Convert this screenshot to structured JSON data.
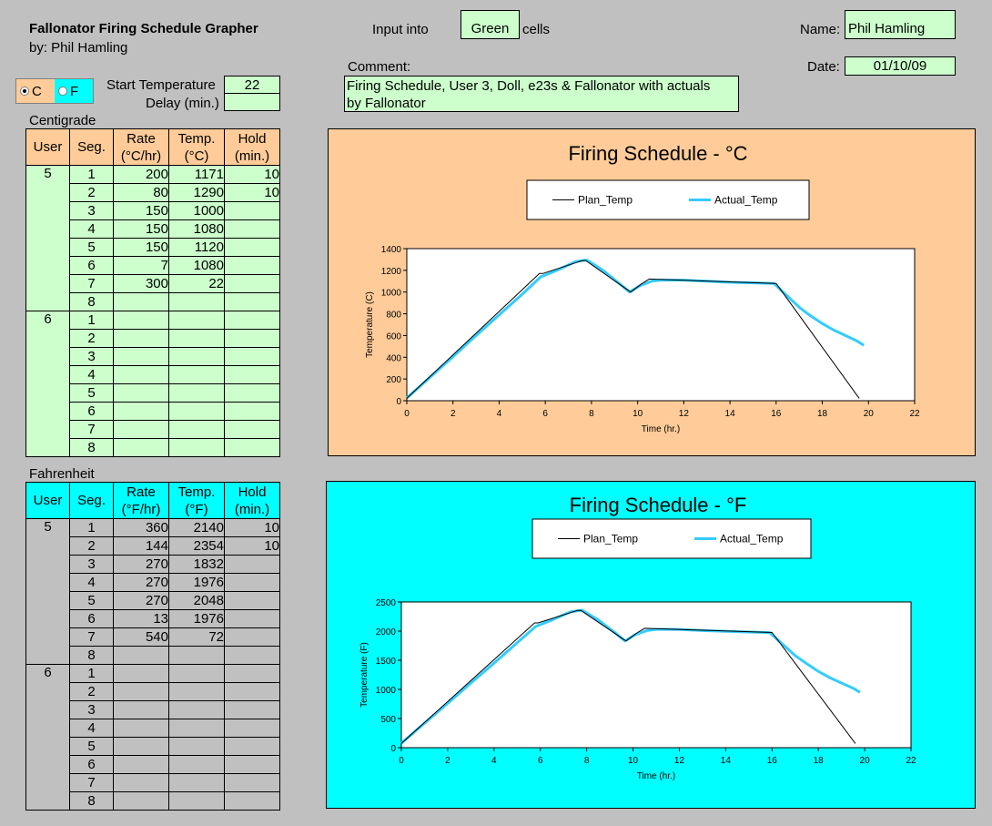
{
  "header": {
    "title": "Fallonator Firing Schedule Grapher",
    "author": "by: Phil Hamling",
    "input_into": "Input into",
    "green_label": "Green",
    "cells_label": "cells",
    "name_label": "Name:",
    "name_value": "Phil Hamling",
    "date_label": "Date:",
    "date_value": "01/10/09",
    "comment_label": "Comment:",
    "comment_line1": "Firing Schedule, User 3, Doll, e23s & Fallonator with actuals",
    "comment_line2": "by Fallonator"
  },
  "units": {
    "c_label": "C",
    "f_label": "F",
    "selected": "C",
    "c_color": "#ffcc99",
    "f_color": "#00ffff"
  },
  "settings": {
    "start_temp_label": "Start Temperature",
    "start_temp_value": "22",
    "delay_label": "Delay (min.)",
    "delay_value": ""
  },
  "centigrade": {
    "section_label": "Centigrade",
    "headers": {
      "user": "User",
      "seg": "Seg.",
      "rate1": "Rate",
      "rate2": "(°C/hr)",
      "temp1": "Temp.",
      "temp2": "(°C)",
      "hold1": "Hold",
      "hold2": "(min.)"
    },
    "users": [
      {
        "user": "5",
        "rows": [
          {
            "seg": "1",
            "rate": "200",
            "temp": "1171",
            "hold": "10"
          },
          {
            "seg": "2",
            "rate": "80",
            "temp": "1290",
            "hold": "10"
          },
          {
            "seg": "3",
            "rate": "150",
            "temp": "1000",
            "hold": ""
          },
          {
            "seg": "4",
            "rate": "150",
            "temp": "1080",
            "hold": ""
          },
          {
            "seg": "5",
            "rate": "150",
            "temp": "1120",
            "hold": ""
          },
          {
            "seg": "6",
            "rate": "7",
            "temp": "1080",
            "hold": ""
          },
          {
            "seg": "7",
            "rate": "300",
            "temp": "22",
            "hold": ""
          },
          {
            "seg": "8",
            "rate": "",
            "temp": "",
            "hold": ""
          }
        ]
      },
      {
        "user": "6",
        "rows": [
          {
            "seg": "1",
            "rate": "",
            "temp": "",
            "hold": ""
          },
          {
            "seg": "2",
            "rate": "",
            "temp": "",
            "hold": ""
          },
          {
            "seg": "3",
            "rate": "",
            "temp": "",
            "hold": ""
          },
          {
            "seg": "4",
            "rate": "",
            "temp": "",
            "hold": ""
          },
          {
            "seg": "5",
            "rate": "",
            "temp": "",
            "hold": ""
          },
          {
            "seg": "6",
            "rate": "",
            "temp": "",
            "hold": ""
          },
          {
            "seg": "7",
            "rate": "",
            "temp": "",
            "hold": ""
          },
          {
            "seg": "8",
            "rate": "",
            "temp": "",
            "hold": ""
          }
        ]
      }
    ]
  },
  "fahrenheit": {
    "section_label": "Fahrenheit",
    "headers": {
      "user": "User",
      "seg": "Seg.",
      "rate1": "Rate",
      "rate2": "(°F/hr)",
      "temp1": "Temp.",
      "temp2": "(°F)",
      "hold1": "Hold",
      "hold2": "(min.)"
    },
    "users": [
      {
        "user": "5",
        "rows": [
          {
            "seg": "1",
            "rate": "360",
            "temp": "2140",
            "hold": "10"
          },
          {
            "seg": "2",
            "rate": "144",
            "temp": "2354",
            "hold": "10"
          },
          {
            "seg": "3",
            "rate": "270",
            "temp": "1832",
            "hold": ""
          },
          {
            "seg": "4",
            "rate": "270",
            "temp": "1976",
            "hold": ""
          },
          {
            "seg": "5",
            "rate": "270",
            "temp": "2048",
            "hold": ""
          },
          {
            "seg": "6",
            "rate": "13",
            "temp": "1976",
            "hold": ""
          },
          {
            "seg": "7",
            "rate": "540",
            "temp": "72",
            "hold": ""
          },
          {
            "seg": "8",
            "rate": "",
            "temp": "",
            "hold": ""
          }
        ]
      },
      {
        "user": "6",
        "rows": [
          {
            "seg": "1",
            "rate": "",
            "temp": "",
            "hold": ""
          },
          {
            "seg": "2",
            "rate": "",
            "temp": "",
            "hold": ""
          },
          {
            "seg": "3",
            "rate": "",
            "temp": "",
            "hold": ""
          },
          {
            "seg": "4",
            "rate": "",
            "temp": "",
            "hold": ""
          },
          {
            "seg": "5",
            "rate": "",
            "temp": "",
            "hold": ""
          },
          {
            "seg": "6",
            "rate": "",
            "temp": "",
            "hold": ""
          },
          {
            "seg": "7",
            "rate": "",
            "temp": "",
            "hold": ""
          },
          {
            "seg": "8",
            "rate": "",
            "temp": "",
            "hold": ""
          }
        ]
      }
    ]
  },
  "chart_data": [
    {
      "type": "line",
      "title": "Firing Schedule - °C",
      "xlabel": "Time (hr.)",
      "ylabel": "Temperature (C)",
      "xlim": [
        0,
        22
      ],
      "ylim": [
        0,
        1400
      ],
      "xticks": [
        0,
        2,
        4,
        6,
        8,
        10,
        12,
        14,
        16,
        18,
        20,
        22
      ],
      "yticks": [
        0,
        200,
        400,
        600,
        800,
        1000,
        1200,
        1400
      ],
      "grid": false,
      "legend_position": "top",
      "background": "#ffcc99",
      "series": [
        {
          "name": "Plan_Temp",
          "color": "#000000",
          "width": 1,
          "x": [
            0,
            5.75,
            5.9,
            7.6,
            7.75,
            9.7,
            10.2,
            10.5,
            16.0,
            19.6
          ],
          "y": [
            22,
            1171,
            1171,
            1290,
            1290,
            1000,
            1080,
            1120,
            1080,
            22
          ]
        },
        {
          "name": "Actual_Temp",
          "color": "#33ccff",
          "width": 3,
          "x": [
            0,
            1,
            2,
            3,
            4,
            5,
            5.8,
            6.5,
            7.3,
            7.8,
            8.5,
            9.2,
            9.65,
            10.1,
            10.6,
            11,
            12,
            13,
            14,
            15,
            15.9,
            16.5,
            17,
            17.5,
            18,
            18.5,
            19,
            19.5,
            19.8
          ],
          "y": [
            25,
            215,
            405,
            600,
            790,
            980,
            1140,
            1200,
            1280,
            1295,
            1200,
            1080,
            1000,
            1060,
            1100,
            1110,
            1110,
            1100,
            1090,
            1085,
            1080,
            960,
            860,
            780,
            710,
            650,
            600,
            550,
            510
          ]
        }
      ]
    },
    {
      "type": "line",
      "title": "Firing Schedule - °F",
      "xlabel": "Time (hr.)",
      "ylabel": "Temperature (F)",
      "xlim": [
        0,
        22
      ],
      "ylim": [
        0,
        2500
      ],
      "xticks": [
        0,
        2,
        4,
        6,
        8,
        10,
        12,
        14,
        16,
        18,
        20,
        22
      ],
      "yticks": [
        0,
        500,
        1000,
        1500,
        2000,
        2500
      ],
      "grid": false,
      "legend_position": "top",
      "background": "#00ffff",
      "series": [
        {
          "name": "Plan_Temp",
          "color": "#000000",
          "width": 1,
          "x": [
            0,
            5.75,
            5.9,
            7.6,
            7.75,
            9.7,
            10.2,
            10.5,
            16.0,
            19.6
          ],
          "y": [
            72,
            2140,
            2140,
            2354,
            2354,
            1832,
            1976,
            2048,
            1976,
            72
          ]
        },
        {
          "name": "Actual_Temp",
          "color": "#33ccff",
          "width": 3,
          "x": [
            0,
            1,
            2,
            3,
            4,
            5,
            5.8,
            6.5,
            7.3,
            7.8,
            8.5,
            9.2,
            9.65,
            10.1,
            10.6,
            11,
            12,
            13,
            14,
            15,
            15.9,
            16.5,
            17,
            17.5,
            18,
            18.5,
            19,
            19.5,
            19.8
          ],
          "y": [
            77,
            420,
            760,
            1110,
            1450,
            1800,
            2080,
            2190,
            2330,
            2360,
            2190,
            1980,
            1830,
            1940,
            2010,
            2030,
            2030,
            2010,
            1995,
            1985,
            1975,
            1760,
            1580,
            1440,
            1310,
            1200,
            1110,
            1020,
            950
          ]
        }
      ]
    }
  ]
}
